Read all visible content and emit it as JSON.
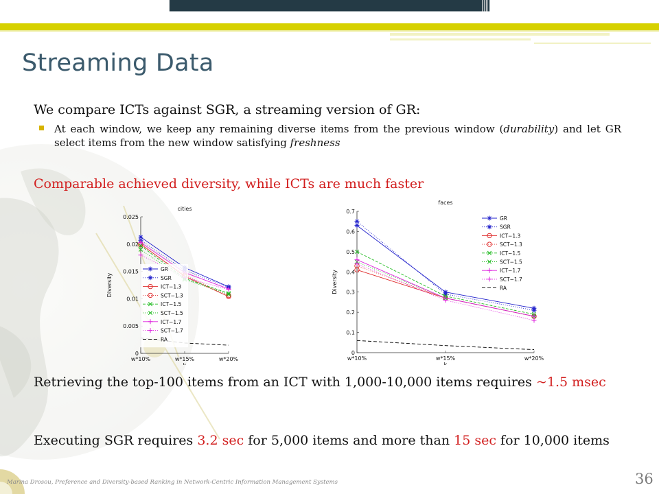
{
  "slide": {
    "title": "Streaming Data",
    "lead": "We compare ICTs against SGR, a streaming version of GR:",
    "bullet_pre": "At each window, we keep any remaining diverse items from the previous window (",
    "bullet_em1": "durability",
    "bullet_mid": ") and let GR select items from the new window satisfying ",
    "bullet_em2": "freshness",
    "highlight": "Comparable achieved diversity, while ICTs are much faster",
    "para1_text": "Retrieving the top-100 items from an ICT with 1,000-10,000 items requires ",
    "para1_value": "~1.5 msec",
    "para2_pre": "Executing SGR requires ",
    "para2_value1": "3.2 sec",
    "para2_mid": " for 5,000 items and more than ",
    "para2_value2": "15 sec",
    "para2_post": " for 10,000 items",
    "footer": "Marina Drosou, Preference and Diversity-based Ranking in Network-Centric Information Management Systems",
    "page_number": "36"
  },
  "colors": {
    "title": "#3b5a6c",
    "accent_red": "#d21f1f",
    "bar_dark": "#243a45",
    "bar_yellow": "#d6d100",
    "series_blue": "#2222cc",
    "series_red": "#e03030",
    "series_green": "#22bb22",
    "series_magenta": "#dd22dd",
    "series_black": "#000000"
  },
  "chart_data": [
    {
      "type": "line",
      "title": "cities",
      "xlabel": "k",
      "ylabel": "Diversity",
      "categories": [
        "w*10%",
        "w*15%",
        "w*20%"
      ],
      "yticks": [
        "0",
        "0.005",
        "0.01",
        "0.015",
        "0.02",
        "0.025"
      ],
      "ylim": [
        0,
        0.025
      ],
      "legend_position": "left",
      "series": [
        {
          "name": "GR",
          "values": [
            0.0213,
            0.0157,
            0.0122
          ],
          "color": "#2222cc",
          "dash": "",
          "marker": "star"
        },
        {
          "name": "SGR",
          "values": [
            0.0207,
            0.0152,
            0.0121
          ],
          "color": "#2222cc",
          "dash": "1,2",
          "marker": "star"
        },
        {
          "name": "ICT−1.3",
          "values": [
            0.02,
            0.0141,
            0.0104
          ],
          "color": "#e03030",
          "dash": "",
          "marker": "circle"
        },
        {
          "name": "SCT−1.3",
          "values": [
            0.0199,
            0.0143,
            0.0106
          ],
          "color": "#e03030",
          "dash": "1,2",
          "marker": "circle"
        },
        {
          "name": "ICT−1.5",
          "values": [
            0.0197,
            0.0137,
            0.011
          ],
          "color": "#22bb22",
          "dash": "4,2",
          "marker": "x"
        },
        {
          "name": "SCT−1.5",
          "values": [
            0.019,
            0.0135,
            0.0108
          ],
          "color": "#22bb22",
          "dash": "1,2",
          "marker": "x"
        },
        {
          "name": "ICT−1.7",
          "values": [
            0.0203,
            0.0148,
            0.0118
          ],
          "color": "#dd22dd",
          "dash": "",
          "marker": "plus"
        },
        {
          "name": "SCT−1.7",
          "values": [
            0.018,
            0.0139,
            0.0117
          ],
          "color": "#dd22dd",
          "dash": "1,2",
          "marker": "plus"
        },
        {
          "name": "RA",
          "values": [
            0.0028,
            0.0019,
            0.0015
          ],
          "color": "#000000",
          "dash": "5,3",
          "marker": "none"
        }
      ]
    },
    {
      "type": "line",
      "title": "faces",
      "xlabel": "k",
      "ylabel": "Diversity",
      "categories": [
        "w*10%",
        "w*15%",
        "w*20%"
      ],
      "yticks": [
        "0",
        "0.1",
        "0.2",
        "0.3",
        "0.4",
        "0.5",
        "0.6",
        "0.7"
      ],
      "ylim": [
        0,
        0.7
      ],
      "legend_position": "top-right",
      "series": [
        {
          "name": "GR",
          "values": [
            0.63,
            0.3,
            0.22
          ],
          "color": "#2222cc",
          "dash": "",
          "marker": "star"
        },
        {
          "name": "SGR",
          "values": [
            0.65,
            0.29,
            0.21
          ],
          "color": "#2222cc",
          "dash": "1,2",
          "marker": "star"
        },
        {
          "name": "ICT−1.3",
          "values": [
            0.41,
            0.27,
            0.18
          ],
          "color": "#e03030",
          "dash": "",
          "marker": "circle"
        },
        {
          "name": "SCT−1.3",
          "values": [
            0.43,
            0.27,
            0.18
          ],
          "color": "#e03030",
          "dash": "1,2",
          "marker": "circle"
        },
        {
          "name": "ICT−1.5",
          "values": [
            0.5,
            0.28,
            0.19
          ],
          "color": "#22bb22",
          "dash": "4,2",
          "marker": "x"
        },
        {
          "name": "SCT−1.5",
          "values": [
            0.45,
            0.27,
            0.18
          ],
          "color": "#22bb22",
          "dash": "1,2",
          "marker": "x"
        },
        {
          "name": "ICT−1.7",
          "values": [
            0.46,
            0.27,
            0.18
          ],
          "color": "#dd22dd",
          "dash": "",
          "marker": "plus"
        },
        {
          "name": "SCT−1.7",
          "values": [
            0.44,
            0.26,
            0.16
          ],
          "color": "#dd22dd",
          "dash": "1,2",
          "marker": "plus"
        },
        {
          "name": "RA",
          "values": [
            0.06,
            0.035,
            0.015
          ],
          "color": "#000000",
          "dash": "5,3",
          "marker": "none"
        }
      ]
    }
  ]
}
